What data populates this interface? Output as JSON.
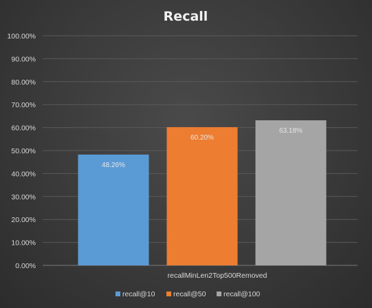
{
  "chart_data": {
    "type": "bar",
    "title": "Recall",
    "categories": [
      "recallMinLen2Top500Removed"
    ],
    "series": [
      {
        "name": "recall@10",
        "values": [
          48.26
        ],
        "label": "48.26%",
        "color": "#5b9bd5"
      },
      {
        "name": "recall@50",
        "values": [
          60.2
        ],
        "label": "60.20%",
        "color": "#ed7d31"
      },
      {
        "name": "recall@100",
        "values": [
          63.18
        ],
        "label": "63.18%",
        "color": "#a5a5a5"
      }
    ],
    "ylim": [
      0,
      100
    ],
    "yticks": [
      "0.00%",
      "10.00%",
      "20.00%",
      "30.00%",
      "40.00%",
      "50.00%",
      "60.00%",
      "70.00%",
      "80.00%",
      "90.00%",
      "100.00%"
    ],
    "grid": true,
    "legend": "bottom"
  }
}
